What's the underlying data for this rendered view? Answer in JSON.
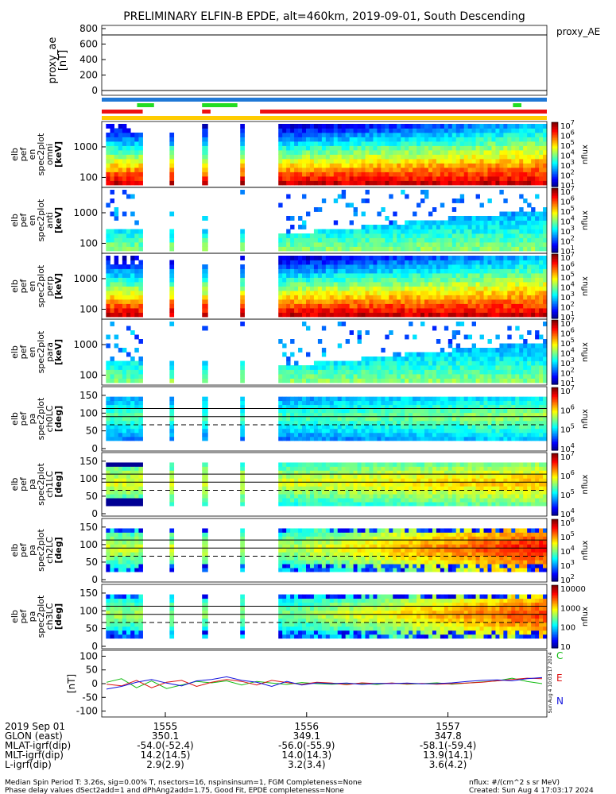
{
  "title": "PRELIMINARY ELFIN-B EPDE, alt=460km, 2019-09-01, South Descending",
  "colors": {
    "bar_blue": "#1f78d6",
    "bar_green": "#22dd22",
    "bar_red": "#ee1111",
    "bar_orange": "#ffcc00",
    "field_blue": "#1111dd",
    "field_red": "#dd1111",
    "field_green": "#11bb11"
  },
  "proxy_ae": {
    "ylabel": "proxy_ae\n[nT]",
    "legend": "proxy_AE",
    "ticks": [
      "800",
      "600",
      "400",
      "200",
      "0"
    ]
  },
  "spectrogram_panels": [
    {
      "ylabel": [
        "elb",
        "pef",
        "en",
        "spec2plot",
        "omni",
        "[keV]"
      ],
      "ticks": [
        "1000",
        "100"
      ],
      "cbar_ticks": [
        "10^7",
        "10^6",
        "10^5",
        "10^4",
        "10^3",
        "10^2",
        "10^1"
      ],
      "cbar_label": "nflux"
    },
    {
      "ylabel": [
        "elb",
        "pef",
        "en",
        "spec2plot",
        "anti",
        "[keV]"
      ],
      "ticks": [
        "1000",
        "100"
      ],
      "cbar_ticks": [
        "10^7",
        "10^6",
        "10^5",
        "10^4",
        "10^3",
        "10^2",
        "10^1"
      ],
      "cbar_label": "nflux"
    },
    {
      "ylabel": [
        "elb",
        "pef",
        "en",
        "spec2plot",
        "perp",
        "[keV]"
      ],
      "ticks": [
        "1000",
        "100"
      ],
      "cbar_ticks": [
        "10^7",
        "10^6",
        "10^5",
        "10^4",
        "10^3",
        "10^2",
        "10^1"
      ],
      "cbar_label": "nflux"
    },
    {
      "ylabel": [
        "elb",
        "pef",
        "en",
        "spec2plot",
        "para",
        "[keV]"
      ],
      "ticks": [
        "1000",
        "100"
      ],
      "cbar_ticks": [
        "10^7",
        "10^6",
        "10^5",
        "10^4",
        "10^3",
        "10^2",
        "10^1"
      ],
      "cbar_label": "nflux"
    }
  ],
  "pitch_panels": [
    {
      "ylabel": [
        "elb",
        "pef",
        "pa",
        "spec2plot",
        "ch0LC",
        "[deg]"
      ],
      "ticks": [
        "150",
        "100",
        "50",
        "0"
      ],
      "cbar_ticks": [
        "10^7",
        "10^6",
        "10^5",
        "10^4"
      ],
      "cbar_label": "nflux"
    },
    {
      "ylabel": [
        "elb",
        "pef",
        "pa",
        "spec2plot",
        "ch1LC",
        "[deg]"
      ],
      "ticks": [
        "150",
        "100",
        "50",
        "0"
      ],
      "cbar_ticks": [
        "10^7",
        "10^6",
        "10^5",
        "10^4"
      ],
      "cbar_label": "nflux"
    },
    {
      "ylabel": [
        "elb",
        "pef",
        "pa",
        "spec2plot",
        "ch2LC",
        "[deg]"
      ],
      "ticks": [
        "150",
        "100",
        "50",
        "0"
      ],
      "cbar_ticks": [
        "10^6",
        "10^5",
        "10^4",
        "10^3",
        "10^2"
      ],
      "cbar_label": "nflux"
    },
    {
      "ylabel": [
        "elb",
        "pef",
        "pa",
        "spec2plot",
        "ch3LC",
        "[deg]"
      ],
      "ticks": [
        "150",
        "100",
        "50",
        "0"
      ],
      "cbar_ticks": [
        "10000",
        "1000",
        "100",
        "10"
      ],
      "cbar_label": "nflux"
    }
  ],
  "field_panel": {
    "ylabel": "[nT]",
    "ticks": [
      "100",
      "50",
      "0",
      "-50",
      "-100"
    ],
    "legend": [
      "C",
      "E",
      "N"
    ],
    "side_stamp": "Sun Aug  4 10:03:17 2024"
  },
  "xaxis": {
    "row_labels": [
      "2019 Sep 01",
      "GLON (east)",
      "MLAT-igrf(dip)",
      "MLT-igrf(dip)",
      "L-igrf(dip)"
    ],
    "columns": [
      {
        "time": "1555",
        "glon": "350.1",
        "mlat": "-54.0(-52.4)",
        "mlt": "14.2(14.5)",
        "l": "2.9(2.9)"
      },
      {
        "time": "1556",
        "glon": "349.1",
        "mlat": "-56.0(-55.9)",
        "mlt": "14.0(14.3)",
        "l": "3.2(3.4)"
      },
      {
        "time": "1557",
        "glon": "347.8",
        "mlat": "-58.1(-59.4)",
        "mlt": "13.9(14.1)",
        "l": "3.6(4.2)"
      }
    ]
  },
  "footer": {
    "line1": "Median Spin Period T: 3.26s, sig=0.00% T, nsectors=16, nspinsinsum=1, FGM Completeness=None",
    "line2": "Phase delay values dSect2add=1 and dPhAng2add=1.75, Good Fit, EPDE completeness=None",
    "units": "nflux: #/(cm^2 s sr MeV)",
    "created": "Created: Sun Aug  4 17:03:17 2024"
  },
  "chart_data": {
    "type": "heatmap",
    "title": "PRELIMINARY ELFIN-B EPDE, alt=460km, 2019-09-01, South Descending",
    "time_ticks": [
      "1555",
      "1556",
      "1557"
    ],
    "time_range_min": [
      1554.55,
      1557.7
    ],
    "data_segments_min": [
      [
        1554.58,
        1554.84
      ],
      [
        1555.03,
        1555.06
      ],
      [
        1555.26,
        1555.3
      ],
      [
        1555.53,
        1555.56
      ],
      [
        1555.8,
        1557.7
      ]
    ],
    "proxy_ae": {
      "ylim": [
        0,
        800
      ],
      "value_nT": 0
    },
    "spectrogram_energy_keV": {
      "ylim": [
        60,
        6000
      ],
      "log": true
    },
    "pitch_angle_deg": {
      "ylim": [
        0,
        170
      ],
      "reference_lines_deg": [
        90,
        113
      ],
      "loss_cone_deg": 67
    },
    "field_nT": {
      "ylim": [
        -110,
        110
      ],
      "series": [
        {
          "name": "C",
          "values": [
            5,
            18,
            -15,
            10,
            -18,
            -5,
            8,
            3,
            10,
            -5,
            8,
            2,
            -3,
            4,
            0,
            -2,
            0,
            1,
            -3,
            2,
            -2,
            0,
            3,
            -2,
            2,
            6,
            10,
            20,
            8,
            0
          ]
        },
        {
          "name": "E",
          "values": [
            -2,
            -8,
            12,
            -15,
            5,
            12,
            -10,
            5,
            15,
            8,
            -5,
            12,
            4,
            -3,
            5,
            2,
            -4,
            3,
            0,
            2,
            -1,
            1,
            -2,
            0,
            2,
            5,
            10,
            15,
            20,
            18
          ]
        },
        {
          "name": "N",
          "values": [
            -20,
            -10,
            5,
            15,
            2,
            -8,
            10,
            15,
            25,
            12,
            5,
            -10,
            8,
            -5,
            3,
            0,
            2,
            -3,
            1,
            0,
            2,
            -1,
            0,
            3,
            8,
            12,
            14,
            10,
            18,
            22
          ]
        }
      ]
    }
  }
}
